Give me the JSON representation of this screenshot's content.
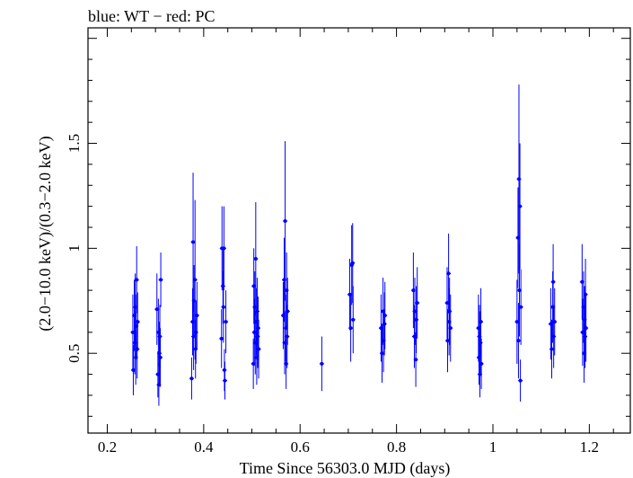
{
  "chart_data": {
    "type": "scatter",
    "title": "blue: WT − red: PC",
    "xlabel": "Time Since 56303.0 MJD (days)",
    "ylabel": "(2.0−10.0 keV)/(0.3−2.0 keV)",
    "xlim": [
      0.16,
      1.285
    ],
    "ylim": [
      0.12,
      2.05
    ],
    "xticks": [
      "0.2",
      "0.4",
      "0.6",
      "0.8",
      "1",
      "1.2"
    ],
    "yticks": [
      "0.5",
      "1",
      "1.5"
    ],
    "grid": false,
    "legend": "none",
    "series": [
      {
        "color": "#0000ff",
        "points": [
          {
            "x": 0.253,
            "y": 0.6,
            "err": 0.18
          },
          {
            "x": 0.254,
            "y": 0.42,
            "err": 0.12
          },
          {
            "x": 0.256,
            "y": 0.68,
            "err": 0.17
          },
          {
            "x": 0.257,
            "y": 0.55,
            "err": 0.15
          },
          {
            "x": 0.258,
            "y": 0.72,
            "err": 0.16
          },
          {
            "x": 0.259,
            "y": 0.48,
            "err": 0.13
          },
          {
            "x": 0.26,
            "y": 0.63,
            "err": 0.15
          },
          {
            "x": 0.261,
            "y": 0.85,
            "err": 0.16
          },
          {
            "x": 0.262,
            "y": 0.52,
            "err": 0.14
          },
          {
            "x": 0.263,
            "y": 0.65,
            "err": 0.14
          },
          {
            "x": 0.303,
            "y": 0.71,
            "err": 0.17
          },
          {
            "x": 0.305,
            "y": 0.4,
            "err": 0.11
          },
          {
            "x": 0.306,
            "y": 0.6,
            "err": 0.16
          },
          {
            "x": 0.307,
            "y": 0.35,
            "err": 0.1
          },
          {
            "x": 0.308,
            "y": 0.5,
            "err": 0.15
          },
          {
            "x": 0.309,
            "y": 0.58,
            "err": 0.15
          },
          {
            "x": 0.31,
            "y": 0.48,
            "err": 0.14
          },
          {
            "x": 0.311,
            "y": 0.85,
            "err": 0.13
          },
          {
            "x": 0.375,
            "y": 0.38,
            "err": 0.1
          },
          {
            "x": 0.377,
            "y": 0.65,
            "err": 0.16
          },
          {
            "x": 0.378,
            "y": 1.03,
            "err": 0.33
          },
          {
            "x": 0.379,
            "y": 0.58,
            "err": 0.16
          },
          {
            "x": 0.38,
            "y": 0.75,
            "err": 0.17
          },
          {
            "x": 0.382,
            "y": 0.85,
            "err": 0.38
          },
          {
            "x": 0.383,
            "y": 0.52,
            "err": 0.14
          },
          {
            "x": 0.384,
            "y": 0.6,
            "err": 0.15
          },
          {
            "x": 0.386,
            "y": 0.68,
            "err": 0.16
          },
          {
            "x": 0.437,
            "y": 0.57,
            "err": 0.14
          },
          {
            "x": 0.438,
            "y": 1.0,
            "err": 0.2
          },
          {
            "x": 0.44,
            "y": 0.82,
            "err": 0.18
          },
          {
            "x": 0.441,
            "y": 0.72,
            "err": 0.17
          },
          {
            "x": 0.442,
            "y": 1.0,
            "err": 0.2
          },
          {
            "x": 0.443,
            "y": 0.42,
            "err": 0.1
          },
          {
            "x": 0.444,
            "y": 0.37,
            "err": 0.09
          },
          {
            "x": 0.446,
            "y": 0.65,
            "err": 0.15
          },
          {
            "x": 0.503,
            "y": 0.45,
            "err": 0.12
          },
          {
            "x": 0.504,
            "y": 0.82,
            "err": 0.18
          },
          {
            "x": 0.505,
            "y": 0.6,
            "err": 0.16
          },
          {
            "x": 0.506,
            "y": 0.72,
            "err": 0.17
          },
          {
            "x": 0.507,
            "y": 0.55,
            "err": 0.15
          },
          {
            "x": 0.508,
            "y": 0.95,
            "err": 0.27
          },
          {
            "x": 0.509,
            "y": 0.65,
            "err": 0.16
          },
          {
            "x": 0.51,
            "y": 0.48,
            "err": 0.13
          },
          {
            "x": 0.511,
            "y": 0.7,
            "err": 0.16
          },
          {
            "x": 0.512,
            "y": 0.58,
            "err": 0.15
          },
          {
            "x": 0.513,
            "y": 0.62,
            "err": 0.15
          },
          {
            "x": 0.514,
            "y": 0.52,
            "err": 0.14
          },
          {
            "x": 0.565,
            "y": 0.68,
            "err": 0.16
          },
          {
            "x": 0.567,
            "y": 0.85,
            "err": 0.2
          },
          {
            "x": 0.568,
            "y": 0.55,
            "err": 0.15
          },
          {
            "x": 0.569,
            "y": 1.13,
            "err": 0.38
          },
          {
            "x": 0.57,
            "y": 0.62,
            "err": 0.16
          },
          {
            "x": 0.571,
            "y": 0.45,
            "err": 0.12
          },
          {
            "x": 0.572,
            "y": 0.8,
            "err": 0.18
          },
          {
            "x": 0.573,
            "y": 0.58,
            "err": 0.15
          },
          {
            "x": 0.574,
            "y": 0.7,
            "err": 0.16
          },
          {
            "x": 0.645,
            "y": 0.45,
            "err": 0.13
          },
          {
            "x": 0.703,
            "y": 0.78,
            "err": 0.17
          },
          {
            "x": 0.705,
            "y": 0.62,
            "err": 0.16
          },
          {
            "x": 0.707,
            "y": 0.92,
            "err": 0.19
          },
          {
            "x": 0.709,
            "y": 0.93,
            "err": 0.19
          },
          {
            "x": 0.71,
            "y": 0.66,
            "err": 0.16
          },
          {
            "x": 0.768,
            "y": 0.62,
            "err": 0.16
          },
          {
            "x": 0.77,
            "y": 0.5,
            "err": 0.14
          },
          {
            "x": 0.772,
            "y": 0.7,
            "err": 0.16
          },
          {
            "x": 0.773,
            "y": 0.56,
            "err": 0.15
          },
          {
            "x": 0.775,
            "y": 0.64,
            "err": 0.15
          },
          {
            "x": 0.776,
            "y": 0.68,
            "err": 0.16
          },
          {
            "x": 0.835,
            "y": 0.8,
            "err": 0.18
          },
          {
            "x": 0.837,
            "y": 0.58,
            "err": 0.15
          },
          {
            "x": 0.838,
            "y": 0.7,
            "err": 0.16
          },
          {
            "x": 0.84,
            "y": 0.47,
            "err": 0.13
          },
          {
            "x": 0.841,
            "y": 0.66,
            "err": 0.16
          },
          {
            "x": 0.843,
            "y": 0.74,
            "err": 0.17
          },
          {
            "x": 0.905,
            "y": 0.74,
            "err": 0.17
          },
          {
            "x": 0.906,
            "y": 0.56,
            "err": 0.15
          },
          {
            "x": 0.908,
            "y": 0.88,
            "err": 0.19
          },
          {
            "x": 0.909,
            "y": 0.65,
            "err": 0.16
          },
          {
            "x": 0.91,
            "y": 0.7,
            "err": 0.16
          },
          {
            "x": 0.912,
            "y": 0.62,
            "err": 0.16
          },
          {
            "x": 0.97,
            "y": 0.62,
            "err": 0.16
          },
          {
            "x": 0.971,
            "y": 0.48,
            "err": 0.13
          },
          {
            "x": 0.972,
            "y": 0.58,
            "err": 0.15
          },
          {
            "x": 0.973,
            "y": 0.4,
            "err": 0.11
          },
          {
            "x": 0.974,
            "y": 0.55,
            "err": 0.15
          },
          {
            "x": 0.975,
            "y": 0.65,
            "err": 0.16
          },
          {
            "x": 0.976,
            "y": 0.45,
            "err": 0.12
          },
          {
            "x": 1.05,
            "y": 0.65,
            "err": 0.2
          },
          {
            "x": 1.052,
            "y": 1.05,
            "err": 0.24
          },
          {
            "x": 1.053,
            "y": 0.56,
            "err": 0.18
          },
          {
            "x": 1.054,
            "y": 1.33,
            "err": 0.45
          },
          {
            "x": 1.055,
            "y": 0.8,
            "err": 0.22
          },
          {
            "x": 1.056,
            "y": 1.2,
            "err": 0.3
          },
          {
            "x": 1.057,
            "y": 0.37,
            "err": 0.1
          },
          {
            "x": 1.058,
            "y": 0.72,
            "err": 0.18
          },
          {
            "x": 1.12,
            "y": 0.64,
            "err": 0.17
          },
          {
            "x": 1.122,
            "y": 0.52,
            "err": 0.14
          },
          {
            "x": 1.124,
            "y": 0.72,
            "err": 0.17
          },
          {
            "x": 1.125,
            "y": 0.84,
            "err": 0.18
          },
          {
            "x": 1.126,
            "y": 0.58,
            "err": 0.15
          },
          {
            "x": 1.128,
            "y": 0.65,
            "err": 0.16
          },
          {
            "x": 1.185,
            "y": 0.84,
            "err": 0.18
          },
          {
            "x": 1.186,
            "y": 0.6,
            "err": 0.16
          },
          {
            "x": 1.188,
            "y": 0.72,
            "err": 0.17
          },
          {
            "x": 1.189,
            "y": 0.5,
            "err": 0.14
          },
          {
            "x": 1.19,
            "y": 0.66,
            "err": 0.16
          },
          {
            "x": 1.191,
            "y": 0.58,
            "err": 0.15
          },
          {
            "x": 1.192,
            "y": 0.78,
            "err": 0.17
          },
          {
            "x": 1.193,
            "y": 0.62,
            "err": 0.16
          }
        ]
      }
    ]
  }
}
